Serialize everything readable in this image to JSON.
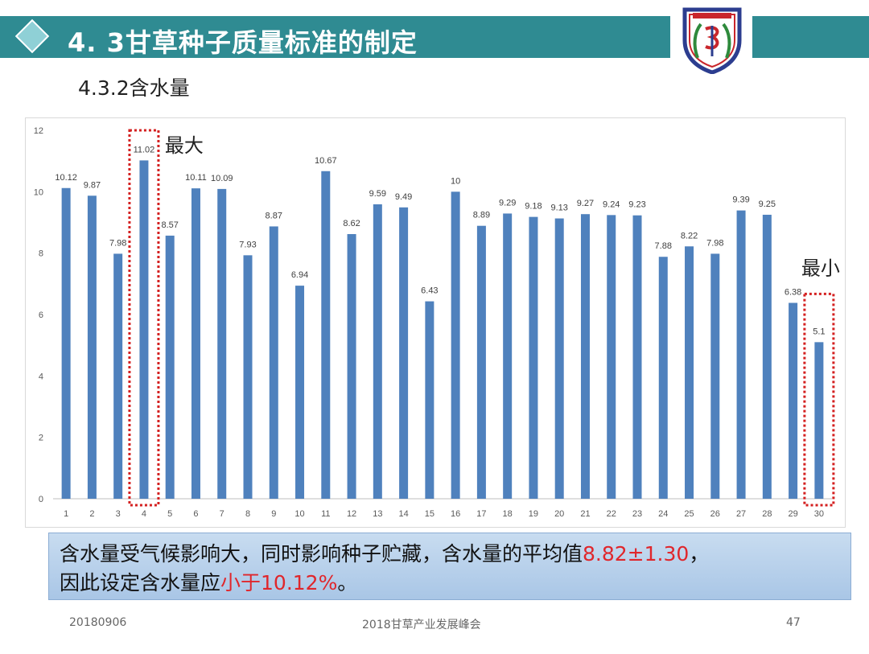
{
  "slide": {
    "title": "4. 3甘草种子质量标准的制定",
    "subtitle": "4.3.2含水量"
  },
  "chart_data": {
    "type": "bar",
    "categories": [
      "1",
      "2",
      "3",
      "4",
      "5",
      "6",
      "7",
      "8",
      "9",
      "10",
      "11",
      "12",
      "13",
      "14",
      "15",
      "16",
      "17",
      "18",
      "19",
      "20",
      "21",
      "22",
      "23",
      "24",
      "25",
      "26",
      "27",
      "28",
      "29",
      "30"
    ],
    "values": [
      10.12,
      9.87,
      7.98,
      11.02,
      8.57,
      10.11,
      10.09,
      7.93,
      8.87,
      6.94,
      10.67,
      8.62,
      9.59,
      9.49,
      6.43,
      10,
      8.89,
      9.29,
      9.18,
      9.13,
      9.27,
      9.24,
      9.23,
      7.88,
      8.22,
      7.98,
      9.39,
      9.25,
      6.38,
      5.1
    ],
    "labels": [
      "10.12",
      "9.87",
      "7.98",
      "11.02",
      "8.57",
      "10.11",
      "10.09",
      "7.93",
      "8.87",
      "6.94",
      "10.67",
      "8.62",
      "9.59",
      "9.49",
      "6.43",
      "10",
      "8.89",
      "9.29",
      "9.18",
      "9.13",
      "9.27",
      "9.24",
      "9.23",
      "7.88",
      "8.22",
      "7.98",
      "9.39",
      "9.25",
      "6.38",
      "5.1"
    ],
    "ylim": [
      0,
      12
    ],
    "yticks": [
      "0",
      "2",
      "4",
      "6",
      "8",
      "10",
      "12"
    ],
    "grid": false,
    "bar_color": "#4f81bd",
    "highlight_color": "#d42020",
    "annotations": [
      {
        "category_index": 3,
        "text": "最大"
      },
      {
        "category_index": 29,
        "text": "最小"
      }
    ]
  },
  "note": {
    "line1_prefix": "含水量受气候影响大，同时影响种子贮藏，含水量的平均值",
    "line1_highlight": "8.82±1.30",
    "line1_suffix": "，",
    "line2_prefix": "因此设定含水量应",
    "line2_highlight": "小于10.12%",
    "line2_suffix": "。"
  },
  "footer": {
    "date": "20180906",
    "event": "2018甘草产业发展峰会",
    "page": "47"
  }
}
